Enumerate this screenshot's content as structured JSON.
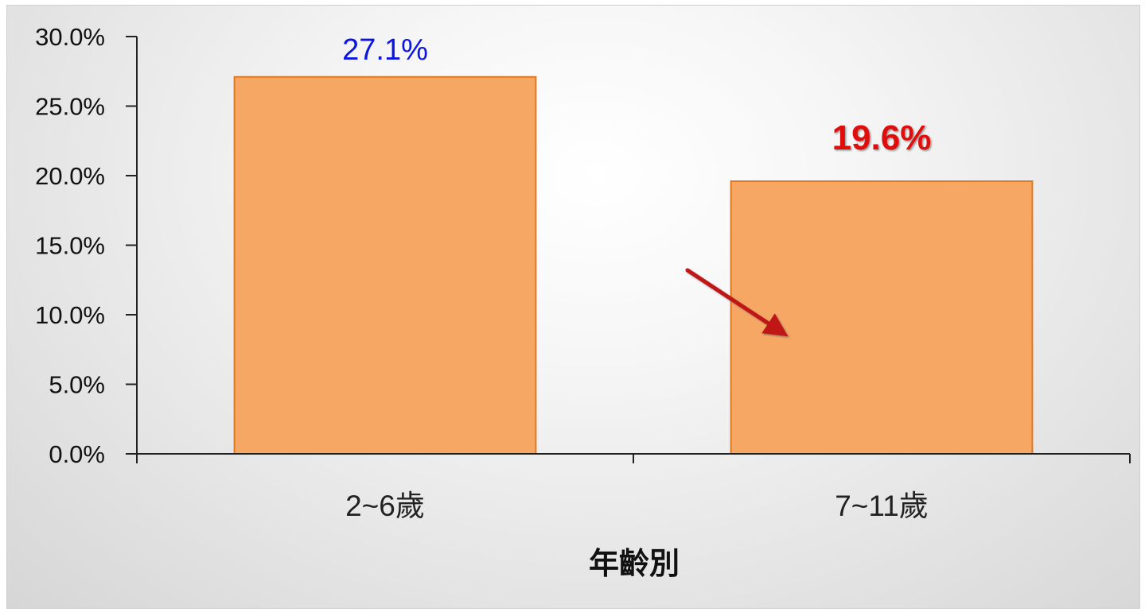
{
  "chart_data": {
    "type": "bar",
    "categories": [
      "2~6歲",
      "7~11歲"
    ],
    "values": [
      27.1,
      19.6
    ],
    "data_labels": [
      "27.1%",
      "19.6%"
    ],
    "data_label_colors": [
      "#0a14e6",
      "#e01010"
    ],
    "title": "",
    "xlabel": "年齡別",
    "ylabel": "",
    "ylim": [
      0,
      30
    ],
    "y_ticks": [
      0,
      5,
      10,
      15,
      20,
      25,
      30
    ],
    "y_tick_labels": [
      "0.0%",
      "5.0%",
      "10.0%",
      "15.0%",
      "20.0%",
      "25.0%",
      "30.0%"
    ],
    "grid": false,
    "legend": "none",
    "bar_color": "#f7a764",
    "bar_edge_color": "#e07820",
    "annotation": "red-arrow-icon",
    "annotation_color": "#c01818"
  }
}
